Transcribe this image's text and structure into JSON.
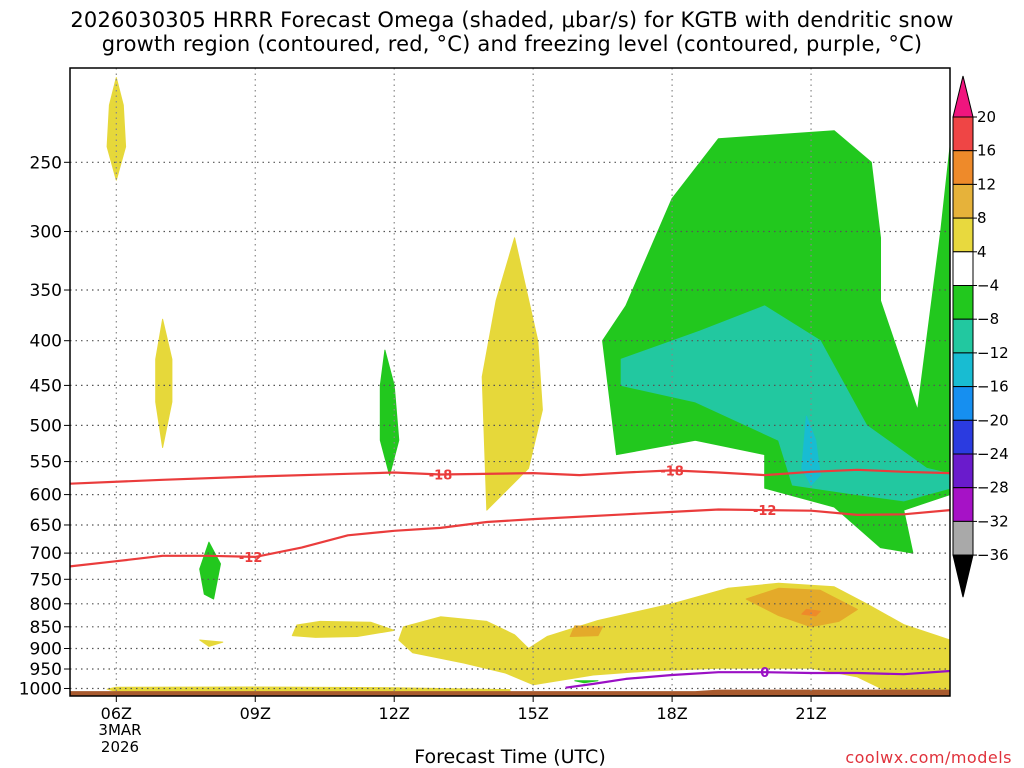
{
  "title": {
    "line1": "2026030305 HRRR Forecast Omega (shaded, μbar/s) for KGTB with dendritic snow",
    "line2": "growth region (contoured, red, °C) and freezing level (contoured, purple, °C)"
  },
  "credit": "coolwx.com/models",
  "chart_data": {
    "type": "heatmap",
    "title": "2026030305 HRRR Forecast Omega (shaded, μbar/s) for KGTB with dendritic snow growth region (contoured, red, °C) and freezing level (contoured, purple, °C)",
    "xlabel": "Forecast Time (UTC)",
    "ylabel": "",
    "x_range_hours": [
      5,
      24
    ],
    "y_range_hPa": [
      1020,
      195
    ],
    "y_scale": "log-pressure",
    "x_ticks": [
      {
        "hour": 6,
        "label": "06Z"
      },
      {
        "hour": 9,
        "label": "09Z"
      },
      {
        "hour": 12,
        "label": "12Z"
      },
      {
        "hour": 15,
        "label": "15Z"
      },
      {
        "hour": 18,
        "label": "18Z"
      },
      {
        "hour": 21,
        "label": "21Z"
      }
    ],
    "date_label": [
      "3MAR",
      "2026"
    ],
    "y_ticks": [
      250,
      300,
      350,
      400,
      450,
      500,
      550,
      600,
      650,
      700,
      750,
      800,
      850,
      900,
      950,
      1000
    ],
    "grid": true,
    "colorbar": {
      "labels": [
        "20",
        "16",
        "12",
        "8",
        "4",
        "−4",
        "−8",
        "−12",
        "−16",
        "−20",
        "−24",
        "−28",
        "−32",
        "−36"
      ],
      "colors": [
        "#f0157e",
        "#ef4545",
        "#ee8a2a",
        "#e6b23a",
        "#e8d93e",
        "#ffffff",
        "#22c81e",
        "#22c8a0",
        "#18bcd2",
        "#168ff0",
        "#2b3be0",
        "#6a1bcc",
        "#a612c6",
        "#a9a9a9",
        "#000000"
      ]
    },
    "omega_regions": [
      {
        "category": "4 to 8",
        "color": "#e6d83a",
        "polygon": [
          [
            6.0,
            200
          ],
          [
            6.15,
            215
          ],
          [
            6.2,
            240
          ],
          [
            6.0,
            262
          ],
          [
            5.8,
            240
          ],
          [
            5.85,
            215
          ]
        ]
      },
      {
        "category": "4 to 8",
        "color": "#e6d83a",
        "polygon": [
          [
            7.0,
            378
          ],
          [
            7.2,
            420
          ],
          [
            7.2,
            470
          ],
          [
            7.0,
            530
          ],
          [
            6.85,
            470
          ],
          [
            6.85,
            420
          ]
        ]
      },
      {
        "category": "4 to 8",
        "color": "#e6d83a",
        "polygon": [
          [
            14.6,
            305
          ],
          [
            15.1,
            400
          ],
          [
            15.2,
            480
          ],
          [
            14.9,
            560
          ],
          [
            14.0,
            625
          ],
          [
            13.9,
            440
          ],
          [
            14.2,
            360
          ]
        ]
      },
      {
        "category": "4 to 8",
        "color": "#e6d83a",
        "polygon": [
          [
            9.8,
            870
          ],
          [
            9.9,
            846
          ],
          [
            10.4,
            838
          ],
          [
            11.5,
            840
          ],
          [
            12.0,
            858
          ],
          [
            11.2,
            872
          ],
          [
            10.3,
            874
          ]
        ]
      },
      {
        "category": "4 to 8",
        "color": "#e6d83a",
        "polygon": [
          [
            7.8,
            880
          ],
          [
            8.3,
            885
          ],
          [
            8.0,
            895
          ]
        ]
      },
      {
        "category": "4 to 8",
        "color": "#e6d83a",
        "polygon": [
          [
            12.2,
            850
          ],
          [
            13.0,
            828
          ],
          [
            14.0,
            838
          ],
          [
            14.6,
            868
          ],
          [
            14.9,
            900
          ],
          [
            15.3,
            872
          ],
          [
            16.4,
            836
          ],
          [
            18.0,
            800
          ],
          [
            19.2,
            768
          ],
          [
            20.3,
            758
          ],
          [
            21.5,
            765
          ],
          [
            22.2,
            800
          ],
          [
            23.0,
            845
          ],
          [
            24.0,
            880
          ],
          [
            24.0,
            1005
          ],
          [
            22.6,
            1005
          ],
          [
            22.0,
            970
          ],
          [
            21.0,
            948
          ],
          [
            19.0,
            948
          ],
          [
            17.5,
            955
          ],
          [
            16.3,
            965
          ],
          [
            15.0,
            990
          ],
          [
            14.4,
            960
          ],
          [
            13.5,
            935
          ],
          [
            12.4,
            910
          ],
          [
            12.1,
            880
          ]
        ]
      },
      {
        "category": "4 to 8",
        "color": "#e6d83a",
        "polygon": [
          [
            6.0,
            997
          ],
          [
            9.0,
            996
          ],
          [
            12.0,
            998
          ],
          [
            14.5,
            1003
          ],
          [
            14.5,
            1008
          ],
          [
            6.0,
            1008
          ],
          [
            5.8,
            1002
          ]
        ]
      },
      {
        "category": "8 to 12",
        "color": "#e4aa2a",
        "polygon": [
          [
            19.6,
            790
          ],
          [
            20.3,
            768
          ],
          [
            21.2,
            772
          ],
          [
            22.0,
            812
          ],
          [
            21.6,
            838
          ],
          [
            21.0,
            850
          ],
          [
            20.3,
            825
          ]
        ]
      },
      {
        "category": "8 to 12",
        "color": "#e4aa2a",
        "polygon": [
          [
            15.9,
            848
          ],
          [
            16.5,
            850
          ],
          [
            16.4,
            870
          ],
          [
            15.8,
            872
          ]
        ]
      },
      {
        "category": "12 to 16",
        "color": "#ee8a2a",
        "polygon": [
          [
            20.9,
            812
          ],
          [
            21.2,
            816
          ],
          [
            21.1,
            826
          ],
          [
            20.8,
            822
          ]
        ]
      },
      {
        "category": "-4 to -8",
        "color": "#22c81e",
        "polygon": [
          [
            17.0,
            365
          ],
          [
            18.0,
            275
          ],
          [
            19.0,
            235
          ],
          [
            21.5,
            230
          ],
          [
            22.3,
            250
          ],
          [
            22.5,
            305
          ],
          [
            22.5,
            360
          ],
          [
            23.3,
            480
          ],
          [
            23.8,
            300
          ],
          [
            24.0,
            240
          ],
          [
            24.0,
            600
          ],
          [
            23.0,
            625
          ],
          [
            23.2,
            700
          ],
          [
            22.5,
            690
          ],
          [
            21.5,
            620
          ],
          [
            20.0,
            590
          ],
          [
            20.0,
            540
          ],
          [
            18.5,
            520
          ],
          [
            16.8,
            540
          ],
          [
            16.5,
            400
          ]
        ]
      },
      {
        "category": "-8 to -12",
        "color": "#22c8a0",
        "polygon": [
          [
            16.9,
            420
          ],
          [
            18.6,
            390
          ],
          [
            20.0,
            365
          ],
          [
            21.2,
            400
          ],
          [
            22.2,
            500
          ],
          [
            23.5,
            560
          ],
          [
            24.0,
            568
          ],
          [
            24.0,
            590
          ],
          [
            23.0,
            610
          ],
          [
            22.0,
            600
          ],
          [
            20.6,
            585
          ],
          [
            20.3,
            520
          ],
          [
            18.5,
            470
          ],
          [
            16.9,
            450
          ]
        ]
      },
      {
        "category": "-12 to -16",
        "color": "#18bcd2",
        "polygon": [
          [
            20.9,
            488
          ],
          [
            21.1,
            520
          ],
          [
            21.2,
            570
          ],
          [
            21.0,
            585
          ],
          [
            20.8,
            560
          ]
        ]
      },
      {
        "category": "-4 to -8",
        "color": "#22c81e",
        "polygon": [
          [
            11.8,
            410
          ],
          [
            12.0,
            450
          ],
          [
            12.1,
            520
          ],
          [
            11.9,
            570
          ],
          [
            11.7,
            520
          ],
          [
            11.7,
            450
          ]
        ]
      },
      {
        "category": "-4 to -8",
        "color": "#22c81e",
        "polygon": [
          [
            8.0,
            680
          ],
          [
            8.25,
            720
          ],
          [
            8.1,
            790
          ],
          [
            7.9,
            780
          ],
          [
            7.8,
            730
          ]
        ]
      },
      {
        "category": "-4 to -8",
        "color": "#22c81e",
        "polygon": [
          [
            15.9,
            980
          ],
          [
            16.4,
            980
          ],
          [
            16.1,
            985
          ]
        ]
      }
    ],
    "contours": [
      {
        "name": "-18",
        "color": "#ea3c3c",
        "level": -18,
        "label_hours": [
          13.0,
          18.0
        ],
        "points": [
          [
            5.0,
            583
          ],
          [
            7.0,
            577
          ],
          [
            9.0,
            572
          ],
          [
            11.0,
            568
          ],
          [
            12.0,
            566
          ],
          [
            13.0,
            569
          ],
          [
            15.0,
            567
          ],
          [
            16.0,
            570
          ],
          [
            17.0,
            566
          ],
          [
            18.0,
            563
          ],
          [
            19.0,
            566
          ],
          [
            20.0,
            570
          ],
          [
            21.0,
            565
          ],
          [
            22.0,
            562
          ],
          [
            23.0,
            565
          ],
          [
            24.0,
            567
          ]
        ]
      },
      {
        "name": "-12",
        "color": "#ea3c3c",
        "level": -12,
        "label_hours": [
          8.9,
          20.0
        ],
        "points": [
          [
            5.0,
            725
          ],
          [
            6.0,
            715
          ],
          [
            7.0,
            705
          ],
          [
            8.0,
            705
          ],
          [
            9.0,
            707
          ],
          [
            10.0,
            690
          ],
          [
            11.0,
            668
          ],
          [
            12.0,
            660
          ],
          [
            13.0,
            655
          ],
          [
            14.0,
            645
          ],
          [
            15.0,
            640
          ],
          [
            17.0,
            632
          ],
          [
            18.0,
            628
          ],
          [
            19.0,
            624
          ],
          [
            20.0,
            625
          ],
          [
            21.0,
            626
          ],
          [
            22.0,
            633
          ],
          [
            23.0,
            632
          ],
          [
            24.0,
            625
          ]
        ]
      },
      {
        "name": "0",
        "color": "#9a10c4",
        "level": 0,
        "label_hours": [
          20.0
        ],
        "points": [
          [
            15.7,
            998
          ],
          [
            16.3,
            988
          ],
          [
            17.0,
            975
          ],
          [
            18.0,
            965
          ],
          [
            19.0,
            958
          ],
          [
            20.0,
            958
          ],
          [
            21.0,
            960
          ],
          [
            22.0,
            960
          ],
          [
            23.0,
            963
          ],
          [
            24.0,
            955
          ]
        ]
      }
    ],
    "terrain": {
      "color": "#a85a2e",
      "top_hPa": [
        [
          5.0,
          1007
        ],
        [
          18.5,
          1007
        ],
        [
          19.0,
          1003
        ],
        [
          24.0,
          1003
        ]
      ]
    }
  }
}
